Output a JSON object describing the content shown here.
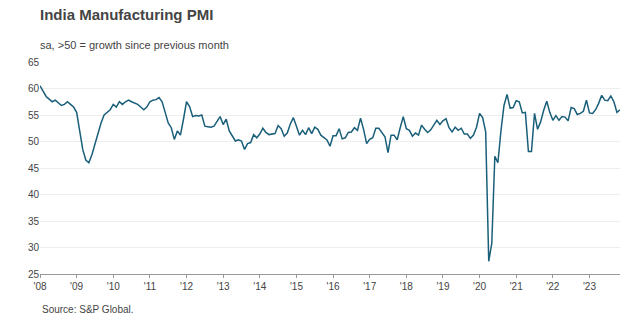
{
  "chart_data": {
    "type": "line",
    "title": "India Manufacturing PMI",
    "subtitle": "sa, >50 = growth since previous month",
    "annotations": [
      "Source: S&P Global."
    ],
    "color": "#1a5f7a",
    "ylim": [
      25,
      65
    ],
    "yticks": [
      25,
      30,
      35,
      40,
      45,
      50,
      55,
      60,
      65
    ],
    "grid": true,
    "categories": [
      "'08",
      null,
      null,
      null,
      null,
      null,
      null,
      null,
      null,
      null,
      null,
      null,
      "'09",
      null,
      null,
      null,
      null,
      null,
      null,
      null,
      null,
      null,
      null,
      null,
      "'10",
      null,
      null,
      null,
      null,
      null,
      null,
      null,
      null,
      null,
      null,
      null,
      "'11",
      null,
      null,
      null,
      null,
      null,
      null,
      null,
      null,
      null,
      null,
      null,
      "'12",
      null,
      null,
      null,
      null,
      null,
      null,
      null,
      null,
      null,
      null,
      null,
      "'13",
      null,
      null,
      null,
      null,
      null,
      null,
      null,
      null,
      null,
      null,
      null,
      "'14",
      null,
      null,
      null,
      null,
      null,
      null,
      null,
      null,
      null,
      null,
      null,
      "'15",
      null,
      null,
      null,
      null,
      null,
      null,
      null,
      null,
      null,
      null,
      null,
      "'16",
      null,
      null,
      null,
      null,
      null,
      null,
      null,
      null,
      null,
      null,
      null,
      "'17",
      null,
      null,
      null,
      null,
      null,
      null,
      null,
      null,
      null,
      null,
      null,
      "'18",
      null,
      null,
      null,
      null,
      null,
      null,
      null,
      null,
      null,
      null,
      null,
      "'19",
      null,
      null,
      null,
      null,
      null,
      null,
      null,
      null,
      null,
      null,
      null,
      "'20",
      null,
      null,
      null,
      null,
      null,
      null,
      null,
      null,
      null,
      null,
      null,
      "'21",
      null,
      null,
      null,
      null,
      null,
      null,
      null,
      null,
      null,
      null,
      null,
      "'22",
      null,
      null,
      null,
      null,
      null,
      null,
      null,
      null,
      null,
      null,
      null,
      "'23",
      null,
      null,
      null,
      null,
      null,
      null,
      null,
      null,
      null,
      null
    ],
    "values": [
      60.5,
      59.5,
      58.5,
      58.0,
      57.5,
      57.8,
      57.2,
      56.8,
      57.0,
      57.5,
      57.0,
      56.5,
      55.5,
      52.0,
      48.5,
      46.5,
      46.0,
      47.5,
      49.5,
      52.0,
      53.5,
      55.0,
      55.5,
      56.0,
      57.0,
      56.5,
      57.5,
      57.0,
      57.5,
      57.8,
      57.5,
      57.2,
      57.0,
      56.5,
      56.0,
      56.5,
      57.5,
      57.8,
      57.9,
      58.3,
      57.5,
      55.5,
      53.5,
      52.6,
      50.4,
      52.0,
      51.2,
      54.2,
      57.5,
      56.6,
      54.7,
      54.9,
      54.8,
      55.0,
      52.9,
      52.8,
      52.7,
      52.9,
      53.7,
      54.7,
      53.2,
      54.2,
      52.0,
      51.0,
      50.1,
      50.3,
      50.1,
      48.5,
      49.6,
      49.8,
      51.3,
      50.7,
      51.4,
      52.5,
      51.7,
      51.3,
      51.4,
      51.5,
      53.0,
      52.4,
      51.0,
      51.6,
      53.3,
      54.5,
      52.9,
      51.2,
      52.1,
      51.3,
      52.6,
      51.5,
      52.7,
      52.3,
      51.2,
      50.7,
      50.3,
      49.1,
      51.1,
      51.1,
      52.4,
      50.5,
      50.7,
      51.7,
      51.8,
      52.6,
      52.1,
      54.4,
      52.3,
      49.6,
      50.4,
      50.7,
      52.5,
      52.5,
      51.6,
      50.9,
      47.9,
      51.2,
      51.2,
      50.3,
      52.6,
      54.7,
      52.4,
      52.1,
      51.0,
      51.6,
      51.2,
      53.1,
      52.3,
      51.7,
      52.2,
      53.1,
      54.0,
      53.2,
      53.9,
      54.3,
      52.6,
      51.8,
      52.7,
      52.1,
      52.5,
      51.4,
      51.4,
      50.6,
      51.2,
      52.7,
      55.3,
      54.5,
      51.8,
      27.4,
      30.8,
      47.2,
      46.0,
      52.0,
      56.8,
      58.9,
      56.3,
      56.4,
      57.7,
      57.5,
      55.4,
      55.5,
      48.1,
      48.1,
      55.3,
      52.3,
      53.7,
      55.9,
      57.6,
      55.5,
      54.0,
      54.9,
      54.0,
      54.7,
      54.6,
      53.9,
      56.4,
      56.2,
      55.1,
      55.3,
      55.7,
      57.8,
      55.4,
      55.3,
      56.0,
      57.2,
      58.7,
      57.8,
      57.7,
      58.6,
      57.5,
      55.5,
      56.0
    ]
  }
}
